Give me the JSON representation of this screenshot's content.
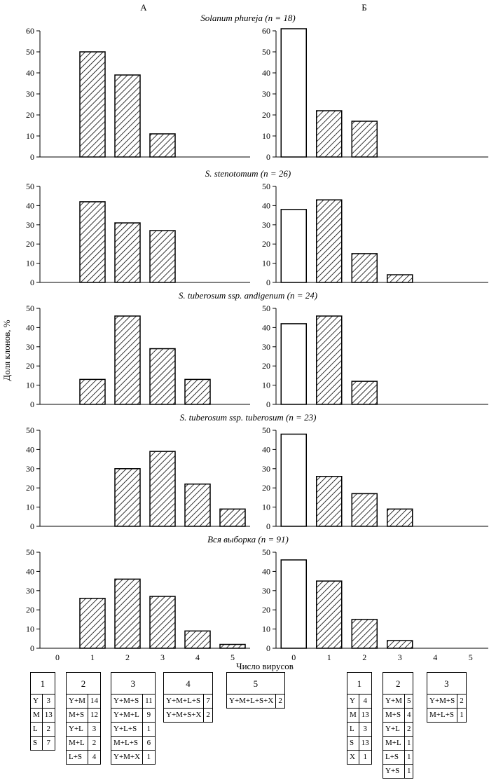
{
  "column_labels": [
    "А",
    "Б"
  ],
  "y_axis_label": "Доля клонов, %",
  "x_axis_label": "Число вирусов",
  "x_ticks": [
    "0",
    "1",
    "2",
    "3",
    "4",
    "5"
  ],
  "chart_data": [
    {
      "type": "bar",
      "panel": "А",
      "title": "Solanum phureja (n = 18)",
      "ylim": [
        0,
        60
      ],
      "yticks": [
        0,
        10,
        20,
        30,
        40,
        50,
        60
      ],
      "categories": [
        0,
        1,
        2,
        3,
        4,
        5
      ],
      "values": [
        0,
        50,
        39,
        11,
        0,
        0
      ]
    },
    {
      "type": "bar",
      "panel": "Б",
      "ylim": [
        0,
        60
      ],
      "yticks": [
        0,
        10,
        20,
        30,
        40,
        50,
        60
      ],
      "categories": [
        0,
        1,
        2,
        3,
        4,
        5
      ],
      "values": [
        61,
        22,
        17,
        0,
        0,
        0
      ]
    },
    {
      "type": "bar",
      "panel": "А",
      "title": "S. stenotomum (n = 26)",
      "ylim": [
        0,
        50
      ],
      "yticks": [
        0,
        10,
        20,
        30,
        40,
        50
      ],
      "categories": [
        0,
        1,
        2,
        3,
        4,
        5
      ],
      "values": [
        0,
        42,
        31,
        27,
        0,
        0
      ]
    },
    {
      "type": "bar",
      "panel": "Б",
      "ylim": [
        0,
        50
      ],
      "yticks": [
        0,
        10,
        20,
        30,
        40,
        50
      ],
      "categories": [
        0,
        1,
        2,
        3,
        4,
        5
      ],
      "values": [
        38,
        43,
        15,
        4,
        0,
        0
      ]
    },
    {
      "type": "bar",
      "panel": "А",
      "title": "S. tuberosum ssp. andigenum (n = 24)",
      "ylim": [
        0,
        50
      ],
      "yticks": [
        0,
        10,
        20,
        30,
        40,
        50
      ],
      "categories": [
        0,
        1,
        2,
        3,
        4,
        5
      ],
      "values": [
        0,
        13,
        46,
        29,
        13,
        0
      ]
    },
    {
      "type": "bar",
      "panel": "Б",
      "ylim": [
        0,
        50
      ],
      "yticks": [
        0,
        10,
        20,
        30,
        40,
        50
      ],
      "categories": [
        0,
        1,
        2,
        3,
        4,
        5
      ],
      "values": [
        42,
        46,
        12,
        0,
        0,
        0
      ]
    },
    {
      "type": "bar",
      "panel": "А",
      "title": "S. tuberosum ssp. tuberosum (n = 23)",
      "ylim": [
        0,
        50
      ],
      "yticks": [
        0,
        10,
        20,
        30,
        40,
        50
      ],
      "categories": [
        0,
        1,
        2,
        3,
        4,
        5
      ],
      "values": [
        0,
        0,
        30,
        39,
        22,
        9
      ]
    },
    {
      "type": "bar",
      "panel": "Б",
      "ylim": [
        0,
        50
      ],
      "yticks": [
        0,
        10,
        20,
        30,
        40,
        50
      ],
      "categories": [
        0,
        1,
        2,
        3,
        4,
        5
      ],
      "values": [
        48,
        26,
        17,
        9,
        0,
        0
      ]
    },
    {
      "type": "bar",
      "panel": "А",
      "title": "Вся выборка (n = 91)",
      "ylim": [
        0,
        50
      ],
      "yticks": [
        0,
        10,
        20,
        30,
        40,
        50
      ],
      "categories": [
        0,
        1,
        2,
        3,
        4,
        5
      ],
      "values": [
        0,
        26,
        36,
        27,
        9,
        2
      ]
    },
    {
      "type": "bar",
      "panel": "Б",
      "ylim": [
        0,
        50
      ],
      "yticks": [
        0,
        10,
        20,
        30,
        40,
        50
      ],
      "categories": [
        0,
        1,
        2,
        3,
        4,
        5
      ],
      "values": [
        46,
        35,
        15,
        4,
        0,
        0
      ]
    }
  ],
  "tables_A": [
    {
      "header": "1",
      "rows": [
        [
          "Y",
          "3"
        ],
        [
          "M",
          "13"
        ],
        [
          "L",
          "2"
        ],
        [
          "S",
          "7"
        ]
      ]
    },
    {
      "header": "2",
      "rows": [
        [
          "Y+M",
          "14"
        ],
        [
          "M+S",
          "12"
        ],
        [
          "Y+L",
          "3"
        ],
        [
          "M+L",
          "2"
        ],
        [
          "L+S",
          "4"
        ]
      ]
    },
    {
      "header": "3",
      "rows": [
        [
          "Y+M+S",
          "11"
        ],
        [
          "Y+M+L",
          "9"
        ],
        [
          "Y+L+S",
          "1"
        ],
        [
          "M+L+S",
          "6"
        ],
        [
          "Y+M+X",
          "1"
        ]
      ]
    },
    {
      "header": "4",
      "rows": [
        [
          "Y+M+L+S",
          "7"
        ],
        [
          "Y+M+S+X",
          "2"
        ]
      ]
    },
    {
      "header": "5",
      "rows": [
        [
          "Y+M+L+S+X",
          "2"
        ]
      ]
    }
  ],
  "tables_B": [
    {
      "header": "1",
      "rows": [
        [
          "Y",
          "4"
        ],
        [
          "M",
          "13"
        ],
        [
          "L",
          "3"
        ],
        [
          "S",
          "13"
        ],
        [
          "X",
          "1"
        ]
      ]
    },
    {
      "header": "2",
      "rows": [
        [
          "Y+M",
          "5"
        ],
        [
          "M+S",
          "4"
        ],
        [
          "Y+L",
          "2"
        ],
        [
          "M+L",
          "1"
        ],
        [
          "L+S",
          "1"
        ],
        [
          "Y+S",
          "1"
        ]
      ]
    },
    {
      "header": "3",
      "rows": [
        [
          "Y+M+S",
          "2"
        ],
        [
          "M+L+S",
          "1"
        ]
      ]
    }
  ]
}
